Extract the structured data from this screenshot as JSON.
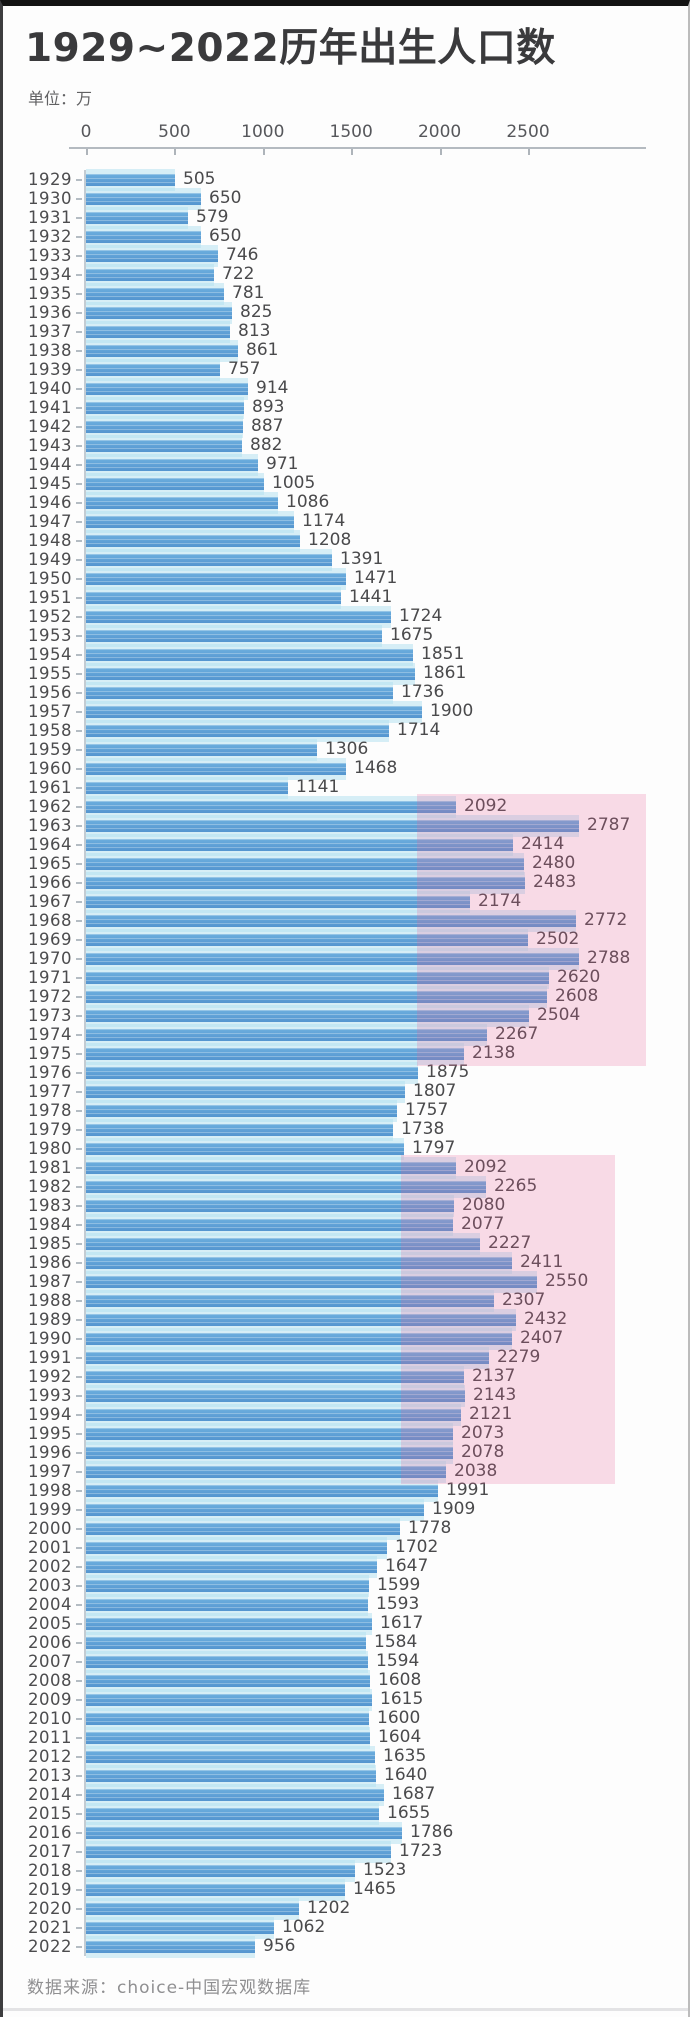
{
  "title": "1929~2022历年出生人口数",
  "unit_label": "单位：万",
  "source": "数据来源：choice-中国宏观数据库",
  "colors": {
    "bar_blue": "#5b9ed7",
    "highlight_bar_purple": "#7b8fd0",
    "highlight_region_pink": "#f8d9e0",
    "title_text": "#3a3a3c",
    "label_text": "#4c4c4e",
    "axis_line": "#b4bac0"
  },
  "chart_data": {
    "type": "bar",
    "orientation": "horizontal",
    "title": "1929~2022历年出生人口数",
    "xlabel": "",
    "ylabel": "",
    "unit": "万",
    "xlim": [
      0,
      3280
    ],
    "grid": false,
    "legend": false,
    "x_ticks": [
      0,
      500,
      1000,
      1500,
      2000,
      2500
    ],
    "categories": [
      "1929",
      "1930",
      "1931",
      "1932",
      "1933",
      "1934",
      "1935",
      "1936",
      "1937",
      "1938",
      "1939",
      "1940",
      "1941",
      "1942",
      "1943",
      "1944",
      "1945",
      "1946",
      "1947",
      "1948",
      "1949",
      "1950",
      "1951",
      "1952",
      "1953",
      "1954",
      "1955",
      "1956",
      "1957",
      "1958",
      "1959",
      "1960",
      "1961",
      "1962",
      "1963",
      "1964",
      "1965",
      "1966",
      "1967",
      "1968",
      "1969",
      "1970",
      "1971",
      "1972",
      "1973",
      "1974",
      "1975",
      "1976",
      "1977",
      "1978",
      "1979",
      "1980",
      "1981",
      "1982",
      "1983",
      "1984",
      "1985",
      "1986",
      "1987",
      "1988",
      "1989",
      "1990",
      "1991",
      "1992",
      "1993",
      "1994",
      "1995",
      "1996",
      "1997",
      "1998",
      "1999",
      "2000",
      "2001",
      "2002",
      "2003",
      "2004",
      "2005",
      "2006",
      "2007",
      "2008",
      "2009",
      "2010",
      "2011",
      "2012",
      "2013",
      "2014",
      "2015",
      "2016",
      "2017",
      "2018",
      "2019",
      "2020",
      "2021",
      "2022"
    ],
    "values": [
      505,
      650,
      579,
      650,
      746,
      722,
      781,
      825,
      813,
      861,
      757,
      914,
      893,
      887,
      882,
      971,
      1005,
      1086,
      1174,
      1208,
      1391,
      1471,
      1441,
      1724,
      1675,
      1851,
      1861,
      1736,
      1900,
      1714,
      1306,
      1468,
      1141,
      2092,
      2787,
      2414,
      2480,
      2483,
      2174,
      2772,
      2502,
      2788,
      2620,
      2608,
      2504,
      2267,
      2138,
      1875,
      1807,
      1757,
      1738,
      1797,
      2092,
      2265,
      2080,
      2077,
      2227,
      2411,
      2550,
      2307,
      2432,
      2407,
      2279,
      2137,
      2143,
      2121,
      2073,
      2078,
      2038,
      1991,
      1909,
      1778,
      1702,
      1647,
      1599,
      1593,
      1617,
      1584,
      1594,
      1608,
      1615,
      1600,
      1604,
      1635,
      1640,
      1687,
      1655,
      1786,
      1723,
      1523,
      1465,
      1202,
      1062,
      956
    ],
    "highlight_regions": [
      {
        "label": "baby-boom-1962-1975",
        "from_year": 1962,
        "to_year": 1975,
        "value_start": 1870,
        "value_end": 3165
      },
      {
        "label": "baby-boom-1981-1997",
        "from_year": 1981,
        "to_year": 1997,
        "value_start": 1780,
        "value_end": 2990
      }
    ]
  }
}
